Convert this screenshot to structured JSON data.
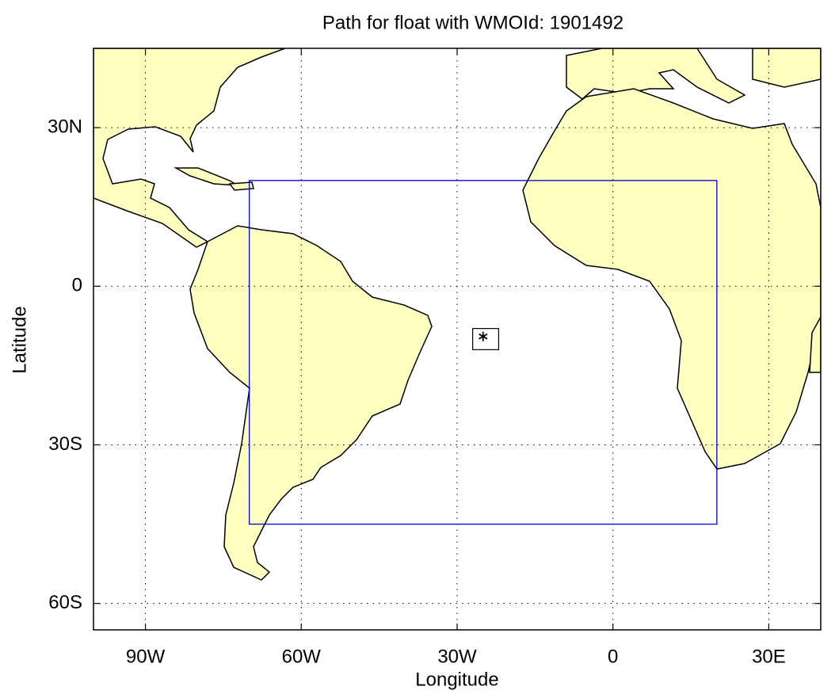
{
  "title": "Path for float with WMOId: 1901492",
  "xlabel": "Longitude",
  "ylabel": "Latitude",
  "xlim": [
    -100,
    40
  ],
  "ylim": [
    -65,
    45
  ],
  "xticks": [
    {
      "value": -90,
      "label": "90W"
    },
    {
      "value": -60,
      "label": "60W"
    },
    {
      "value": -30,
      "label": "30W"
    },
    0,
    {
      "value": 30,
      "label": "30E"
    }
  ],
  "yticks": [
    {
      "value": 30,
      "label": "30N"
    },
    0,
    {
      "value": -30,
      "label": "30S"
    },
    {
      "value": -60,
      "label": "60S"
    }
  ],
  "grid": true,
  "region": {
    "lon": [
      -70,
      20
    ],
    "lat": [
      -45,
      20
    ],
    "color": "#0000cc"
  },
  "float_box": {
    "lon": [
      -27,
      -22
    ],
    "lat": [
      -12,
      -8
    ],
    "color": "#000000"
  },
  "float": {
    "lon": [
      -25
    ],
    "lat": [
      -9.5
    ],
    "color": "#000000"
  }
}
